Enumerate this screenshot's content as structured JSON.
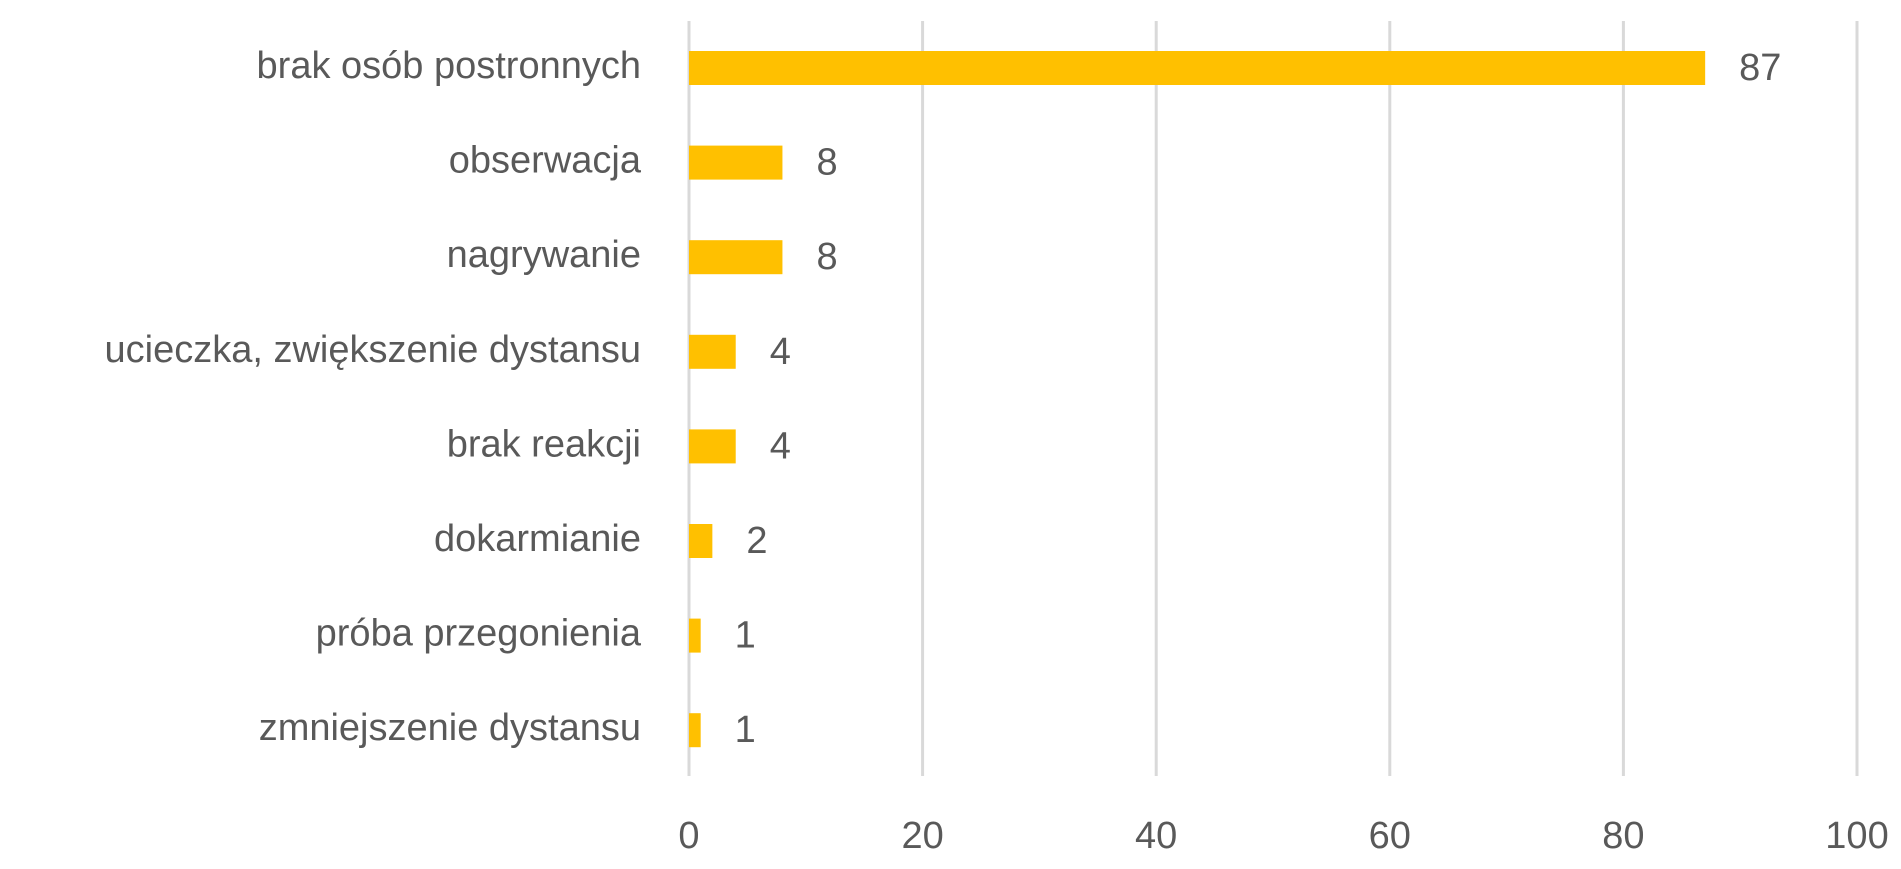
{
  "chart_data": {
    "type": "bar",
    "orientation": "horizontal",
    "categories": [
      "brak osób postronnych",
      "obserwacja",
      "nagrywanie",
      "ucieczka, zwiększenie dystansu",
      "brak reakcji",
      "dokarmianie",
      "próba przegonienia",
      "zmniejszenie dystansu"
    ],
    "values": [
      87,
      8,
      8,
      4,
      4,
      2,
      1,
      1
    ],
    "color": "#ffc000",
    "xlim": [
      0,
      100
    ],
    "xticks": [
      0,
      20,
      40,
      60,
      80,
      100
    ],
    "grid": true
  }
}
